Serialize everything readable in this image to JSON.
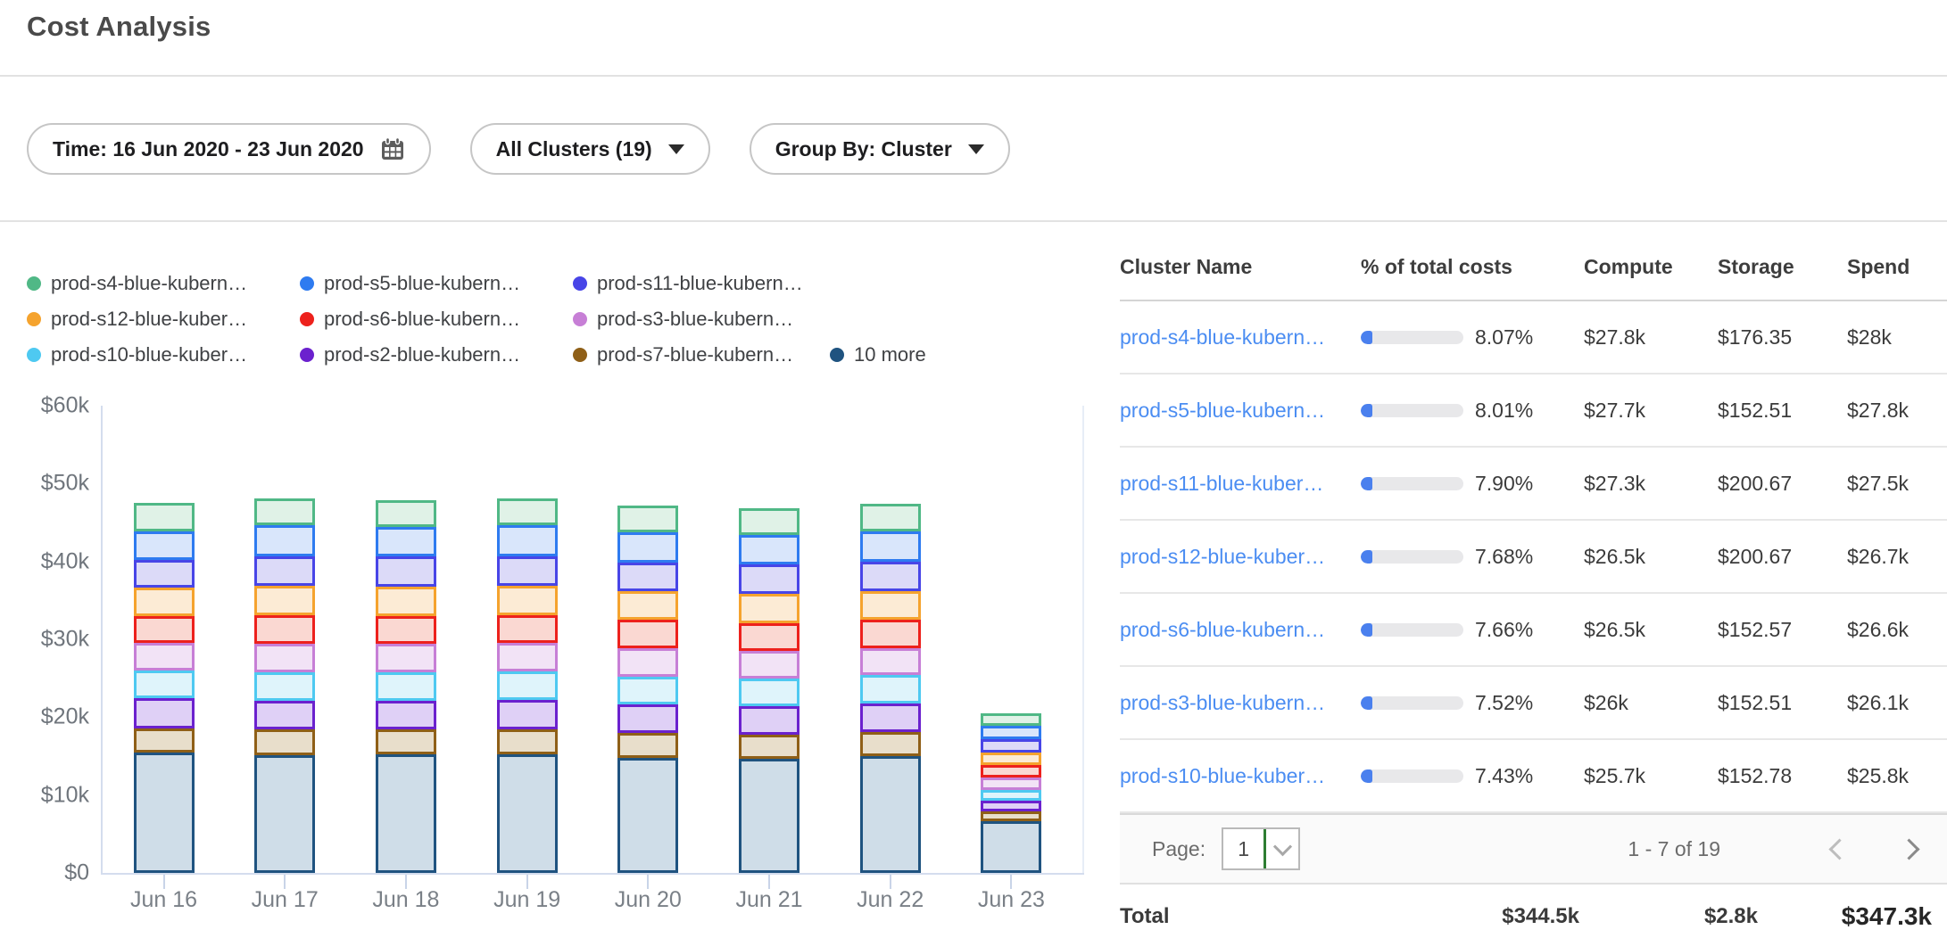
{
  "page": {
    "title": "Cost Analysis"
  },
  "filters": {
    "time_label": "Time: 16 Jun 2020 - 23 Jun 2020",
    "clusters_label": "All Clusters (19)",
    "group_by_label": "Group By: Cluster"
  },
  "icons": {
    "time_filter": "calendar-icon",
    "dropdown": "chevron-down-icon",
    "previous_page": "chevron-left-icon",
    "next_page": "chevron-right-icon"
  },
  "colors": {
    "link_blue": "#4B8DF2",
    "progress_fill": "#4A80EE",
    "progress_track": "#E8E8EA",
    "axis_line": "#D4DDEE",
    "select_divider_green": "#2E7D32"
  },
  "chart_data": {
    "type": "bar",
    "stacked": true,
    "title": "",
    "xlabel": "",
    "ylabel": "",
    "ylim": [
      0,
      60000
    ],
    "grid": false,
    "legend_position": "top",
    "y_tick_labels": [
      "$0",
      "$10k",
      "$20k",
      "$30k",
      "$40k",
      "$50k",
      "$60k"
    ],
    "categories": [
      "Jun 16",
      "Jun 17",
      "Jun 18",
      "Jun 19",
      "Jun 20",
      "Jun 21",
      "Jun 22",
      "Jun 23"
    ],
    "series": [
      {
        "name": "10 more",
        "color": "#1F5380",
        "fill": "#CFDDE8",
        "values": [
          15500,
          15100,
          15200,
          15200,
          14800,
          14700,
          15000,
          6600
        ]
      },
      {
        "name": "prod-s7-blue-kubern…",
        "color": "#8F5F17",
        "fill": "#E8DECB",
        "values": [
          3100,
          3300,
          3200,
          3200,
          3200,
          3100,
          3100,
          1300
        ]
      },
      {
        "name": "prod-s2-blue-kubern…",
        "color": "#6B21CE",
        "fill": "#DFD0F6",
        "values": [
          3800,
          3700,
          3700,
          3800,
          3600,
          3600,
          3700,
          1400
        ]
      },
      {
        "name": "prod-s10-blue-kuber…",
        "color": "#4EC9F1",
        "fill": "#DFF4FB",
        "values": [
          3600,
          3700,
          3700,
          3700,
          3600,
          3600,
          3600,
          1400
        ]
      },
      {
        "name": "prod-s3-blue-kubern…",
        "color": "#C77FD6",
        "fill": "#F2E3F6",
        "values": [
          3500,
          3600,
          3600,
          3600,
          3600,
          3500,
          3500,
          1500
        ]
      },
      {
        "name": "prod-s6-blue-kubern…",
        "color": "#ED211C",
        "fill": "#FAD8D2",
        "values": [
          3500,
          3700,
          3600,
          3600,
          3700,
          3600,
          3600,
          1600
        ]
      },
      {
        "name": "prod-s12-blue-kuber…",
        "color": "#F5A32E",
        "fill": "#FCEBD5",
        "values": [
          3600,
          3800,
          3800,
          3800,
          3700,
          3700,
          3700,
          1700
        ]
      },
      {
        "name": "prod-s11-blue-kubern…",
        "color": "#4845E7",
        "fill": "#DCDAF8",
        "values": [
          3600,
          3800,
          3800,
          3800,
          3700,
          3800,
          3800,
          1700
        ]
      },
      {
        "name": "prod-s5-blue-kubern…",
        "color": "#2E7BF0",
        "fill": "#D9E6FB",
        "values": [
          3700,
          3900,
          3800,
          3900,
          3800,
          3800,
          3900,
          1700
        ]
      },
      {
        "name": "prod-s4-blue-kubern…",
        "color": "#50B886",
        "fill": "#E0F2E7",
        "values": [
          3600,
          3500,
          3500,
          3500,
          3500,
          3400,
          3500,
          1600
        ]
      }
    ],
    "legend_rows": [
      [
        {
          "label": "prod-s4-blue-kubern…",
          "color": "#50B886"
        },
        {
          "label": "prod-s5-blue-kubern…",
          "color": "#2E7BF0"
        },
        {
          "label": "prod-s11-blue-kubern…",
          "color": "#4845E7"
        }
      ],
      [
        {
          "label": "prod-s12-blue-kuber…",
          "color": "#F5A32E"
        },
        {
          "label": "prod-s6-blue-kubern…",
          "color": "#ED211C"
        },
        {
          "label": "prod-s3-blue-kubern…",
          "color": "#C77FD6"
        }
      ],
      [
        {
          "label": "prod-s10-blue-kuber…",
          "color": "#4EC9F1"
        },
        {
          "label": "prod-s2-blue-kubern…",
          "color": "#6B21CE"
        },
        {
          "label": "prod-s7-blue-kubern…",
          "color": "#8F5F17"
        },
        {
          "label": "10 more",
          "color": "#1F5380"
        }
      ]
    ]
  },
  "table": {
    "columns": [
      "Cluster Name",
      "% of total costs",
      "Compute",
      "Storage",
      "Spend"
    ],
    "rows": [
      {
        "name": "prod-s4-blue-kubern…",
        "pct": "8.07%",
        "pct_value": 8.07,
        "compute": "$27.8k",
        "storage": "$176.35",
        "spend": "$28k"
      },
      {
        "name": "prod-s5-blue-kubern…",
        "pct": "8.01%",
        "pct_value": 8.01,
        "compute": "$27.7k",
        "storage": "$152.51",
        "spend": "$27.8k"
      },
      {
        "name": "prod-s11-blue-kuber…",
        "pct": "7.90%",
        "pct_value": 7.9,
        "compute": "$27.3k",
        "storage": "$200.67",
        "spend": "$27.5k"
      },
      {
        "name": "prod-s12-blue-kuber…",
        "pct": "7.68%",
        "pct_value": 7.68,
        "compute": "$26.5k",
        "storage": "$200.67",
        "spend": "$26.7k"
      },
      {
        "name": "prod-s6-blue-kubern…",
        "pct": "7.66%",
        "pct_value": 7.66,
        "compute": "$26.5k",
        "storage": "$152.57",
        "spend": "$26.6k"
      },
      {
        "name": "prod-s3-blue-kubern…",
        "pct": "7.52%",
        "pct_value": 7.52,
        "compute": "$26k",
        "storage": "$152.51",
        "spend": "$26.1k"
      },
      {
        "name": "prod-s10-blue-kuber…",
        "pct": "7.43%",
        "pct_value": 7.43,
        "compute": "$25.7k",
        "storage": "$152.78",
        "spend": "$25.8k"
      }
    ],
    "pagination": {
      "page_label": "Page:",
      "page_value": "1",
      "range_label": "1 - 7 of 19"
    },
    "total": {
      "label": "Total",
      "compute": "$344.5k",
      "storage": "$2.8k",
      "spend": "$347.3k"
    }
  }
}
